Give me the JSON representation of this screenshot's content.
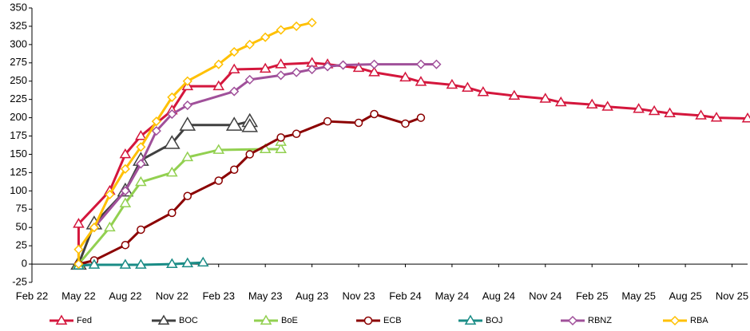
{
  "chart_data": {
    "type": "line",
    "ylim": [
      -25,
      350
    ],
    "yticks": [
      -25,
      0,
      25,
      50,
      75,
      100,
      125,
      150,
      175,
      200,
      225,
      250,
      275,
      300,
      325,
      350
    ],
    "xlim": [
      "2022-02",
      "2025-12"
    ],
    "xticks": [
      {
        "value": "2022-02",
        "label": "Feb 22"
      },
      {
        "value": "2022-05",
        "label": "May 22"
      },
      {
        "value": "2022-08",
        "label": "Aug 22"
      },
      {
        "value": "2022-11",
        "label": "Nov 22"
      },
      {
        "value": "2023-02",
        "label": "Feb 23"
      },
      {
        "value": "2023-05",
        "label": "May 23"
      },
      {
        "value": "2023-08",
        "label": "Aug 23"
      },
      {
        "value": "2023-11",
        "label": "Nov 23"
      },
      {
        "value": "2024-02",
        "label": "Feb 24"
      },
      {
        "value": "2024-05",
        "label": "May 24"
      },
      {
        "value": "2024-08",
        "label": "Aug 24"
      },
      {
        "value": "2024-11",
        "label": "Nov 24"
      },
      {
        "value": "2025-02",
        "label": "Feb 25"
      },
      {
        "value": "2025-05",
        "label": "May 25"
      },
      {
        "value": "2025-08",
        "label": "Aug 25"
      },
      {
        "value": "2025-11",
        "label": "Nov 25"
      }
    ],
    "grid": false,
    "legend": "bottom",
    "series": [
      {
        "name": "Fed",
        "color": "#d4163c",
        "marker": "triangle",
        "x": [
          "2022-05",
          "2022-05",
          "2022-07",
          "2022-08",
          "2022-09",
          "2022-11",
          "2022-12",
          "2023-02",
          "2023-03",
          "2023-05",
          "2023-06",
          "2023-08",
          "2023-09",
          "2023-11",
          "2023-12",
          "2024-02",
          "2024-03",
          "2024-05",
          "2024-06",
          "2024-07",
          "2024-09",
          "2024-11",
          "2024-12",
          "2025-02",
          "2025-03",
          "2025-05",
          "2025-06",
          "2025-07",
          "2025-09",
          "2025-10",
          "2025-12"
        ],
        "values": [
          0,
          55,
          100,
          150,
          175,
          210,
          243,
          243,
          266,
          267,
          273,
          275,
          273,
          268,
          262,
          255,
          249,
          245,
          241,
          235,
          230,
          226,
          221,
          218,
          215,
          212,
          209,
          206,
          203,
          200,
          199
        ]
      },
      {
        "name": "BOC",
        "color": "#404040",
        "marker": "triangle-large",
        "x": [
          "2022-05",
          "2022-06",
          "2022-08",
          "2022-09",
          "2022-11",
          "2022-12",
          "2023-03",
          "2023-04",
          "2023-04"
        ],
        "values": [
          0,
          55,
          100,
          142,
          165,
          190,
          190,
          195,
          188
        ]
      },
      {
        "name": "BoE",
        "color": "#92d050",
        "marker": "triangle",
        "x": [
          "2022-05",
          "2022-07",
          "2022-08",
          "2022-09",
          "2022-11",
          "2022-12",
          "2023-02",
          "2023-05",
          "2023-06",
          "2023-06"
        ],
        "values": [
          0,
          50,
          83,
          112,
          125,
          146,
          156,
          157,
          157,
          167
        ]
      },
      {
        "name": "ECB",
        "color": "#8b0000",
        "marker": "circle",
        "x": [
          "2022-05",
          "2022-06",
          "2022-08",
          "2022-09",
          "2022-11",
          "2022-12",
          "2023-02",
          "2023-03",
          "2023-04",
          "2023-06",
          "2023-07",
          "2023-09",
          "2023-11",
          "2023-12",
          "2024-02",
          "2024-03"
        ],
        "values": [
          0,
          5,
          26,
          47,
          70,
          93,
          114,
          129,
          150,
          173,
          178,
          195,
          193,
          205,
          192,
          200
        ]
      },
      {
        "name": "BOJ",
        "color": "#1a8c86",
        "marker": "triangle",
        "x": [
          "2022-05",
          "2022-06",
          "2022-08",
          "2022-09",
          "2022-11",
          "2022-12",
          "2023-01"
        ],
        "values": [
          -2,
          -1,
          -1,
          -1,
          0,
          1,
          2
        ]
      },
      {
        "name": "RBNZ",
        "color": "#a0509a",
        "marker": "diamond",
        "x": [
          "2022-06",
          "2022-08",
          "2022-09",
          "2022-10",
          "2022-11",
          "2022-12",
          "2023-03",
          "2023-04",
          "2023-06",
          "2023-07",
          "2023-08",
          "2023-09",
          "2023-10",
          "2023-12",
          "2024-03",
          "2024-04"
        ],
        "values": [
          50,
          100,
          137,
          182,
          205,
          217,
          236,
          252,
          258,
          262,
          266,
          270,
          272,
          273,
          273,
          273
        ]
      },
      {
        "name": "RBA",
        "color": "#ffc000",
        "marker": "diamond",
        "x": [
          "2022-05",
          "2022-05",
          "2022-06",
          "2022-07",
          "2022-08",
          "2022-09",
          "2022-10",
          "2022-11",
          "2022-12",
          "2023-02",
          "2023-03",
          "2023-04",
          "2023-05",
          "2023-06",
          "2023-07",
          "2023-08"
        ],
        "values": [
          0,
          20,
          50,
          95,
          130,
          160,
          195,
          228,
          250,
          273,
          290,
          300,
          310,
          320,
          325,
          330
        ]
      }
    ]
  }
}
